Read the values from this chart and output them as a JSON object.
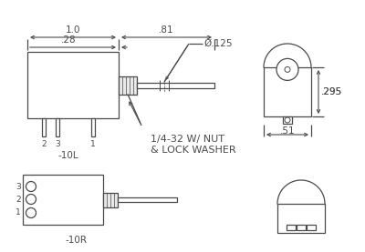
{
  "bg_color": "#ffffff",
  "line_color": "#4a4a4a",
  "dim_1p0": "1.0",
  "dim_81": ".81",
  "dim_28": ".28",
  "dim_dia": "Ø.125",
  "dim_295": ".295",
  "dim_51": ".51",
  "label_10L": "-10L",
  "label_10R": "-10R",
  "label_nut": "1/4-32 W/ NUT\n& LOCK WASHER"
}
